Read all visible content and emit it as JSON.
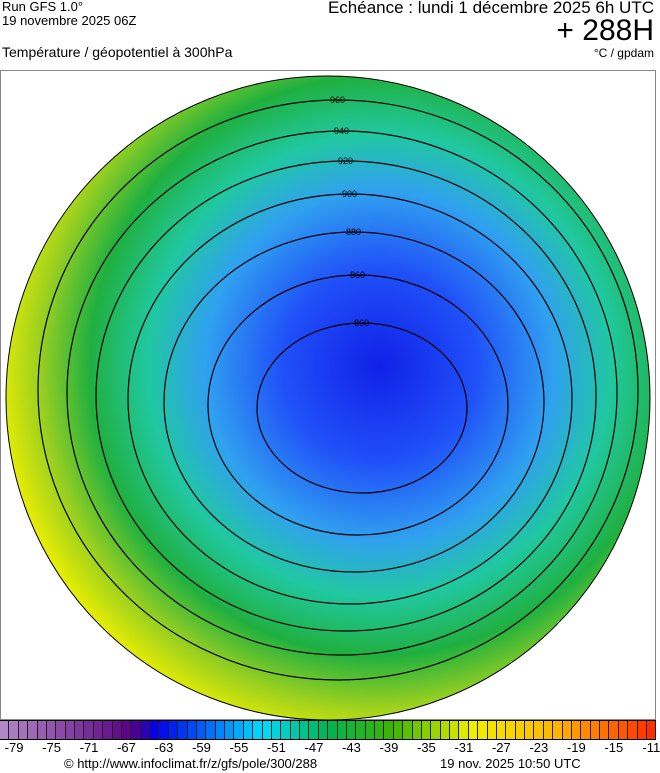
{
  "header": {
    "run": "Run GFS 1.0°",
    "run_date": "19 novembre 2025 06Z",
    "forecast": "Echéance : lundi 1 décembre 2025 6h UTC",
    "lead": "+ 288H",
    "parameter": "Température / géopotentiel à 300hPa",
    "units": "°C / gpdam"
  },
  "legend": {
    "min": -80,
    "max": -10,
    "ticks": [
      "-79",
      "-75",
      "-71",
      "-67",
      "-63",
      "-59",
      "-55",
      "-51",
      "-47",
      "-43",
      "-39",
      "-35",
      "-31",
      "-27",
      "-23",
      "-19",
      "-15",
      "-11"
    ]
  },
  "contour_labels": [
    "960",
    "940",
    "920",
    "900",
    "880",
    "860"
  ],
  "colors": {
    "warm": "#e8e800",
    "mid": "#00b050",
    "cold": "#1a2cf0",
    "coldest": "#0a1ad0"
  },
  "footer": {
    "url": "© http://www.infoclimat.fr/z/gfs/pole/300/288",
    "generated": "19 nov. 2025 10:50 UTC"
  }
}
